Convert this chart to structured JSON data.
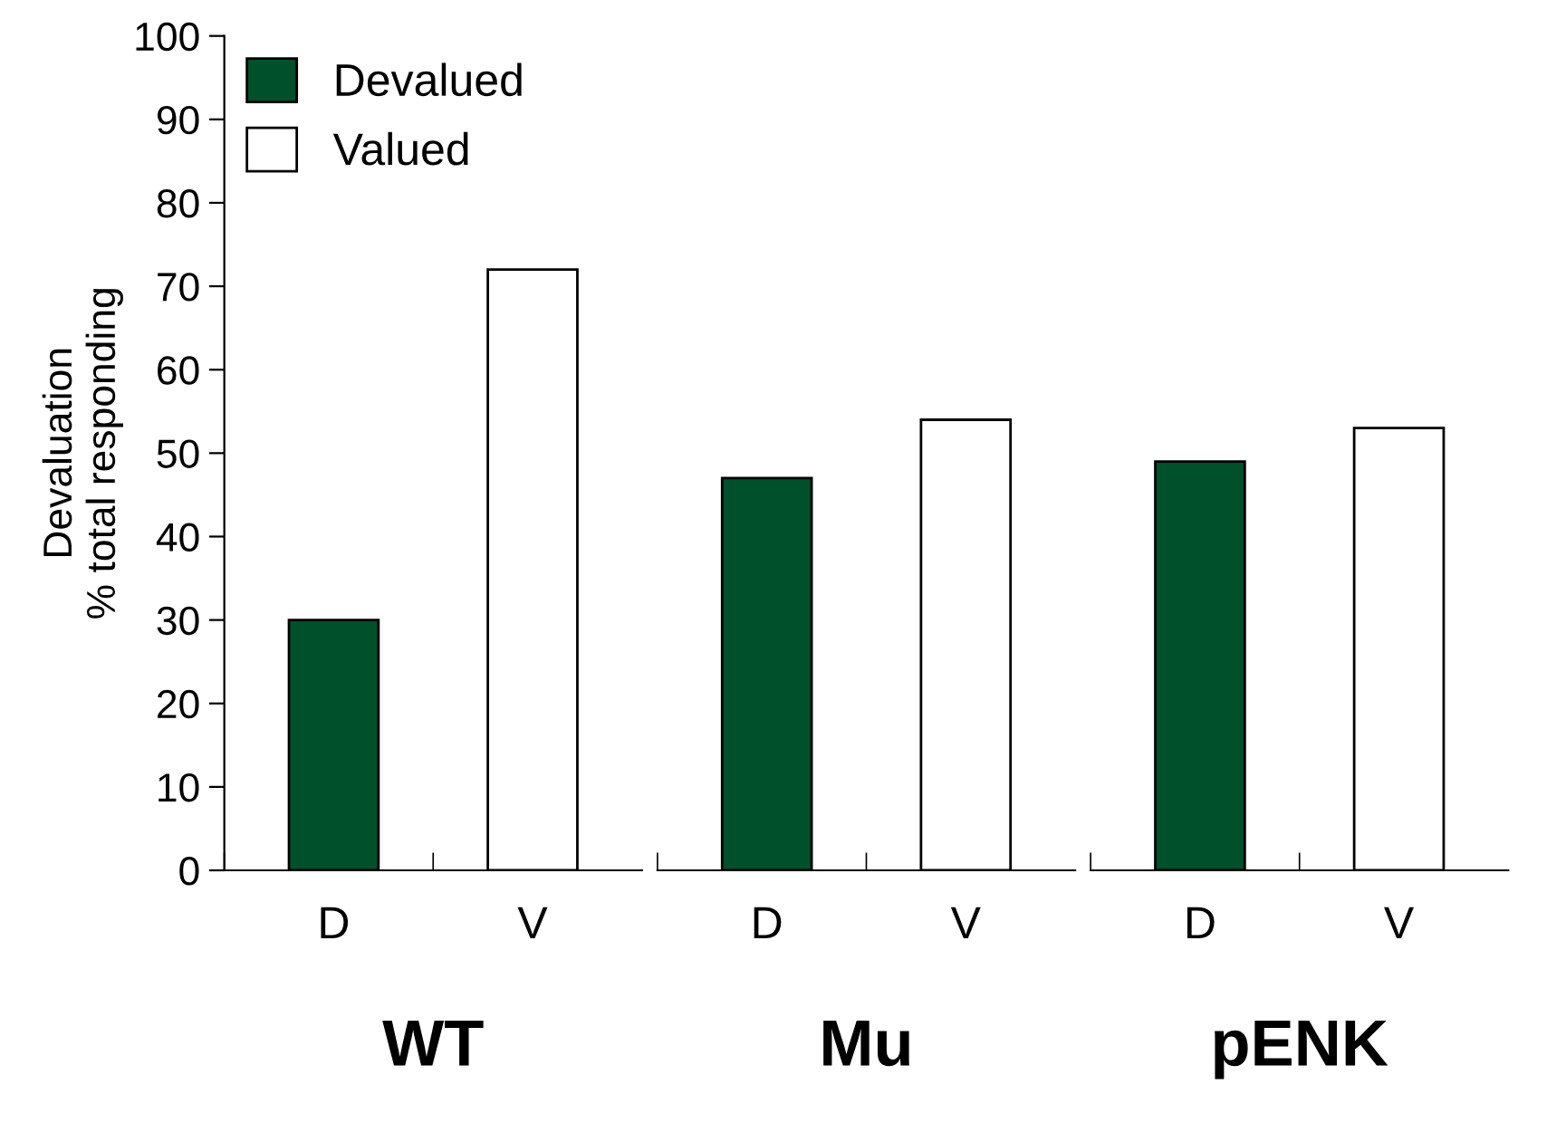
{
  "chart_data": [
    {
      "type": "bar",
      "xlabel": "WT",
      "ylabel": "Devaluation\n% total responding",
      "categories": [
        "D",
        "V"
      ],
      "series": [
        {
          "name": "Devalued",
          "color": "#00502c",
          "values": [
            30,
            null
          ]
        },
        {
          "name": "Valued",
          "color": "#ffffff",
          "values": [
            null,
            72
          ]
        }
      ],
      "ylim": [
        0,
        100
      ],
      "yticks": [
        0,
        10,
        20,
        30,
        40,
        50,
        60,
        70,
        80,
        90,
        100
      ],
      "legend": "top left",
      "grid": false
    },
    {
      "type": "bar",
      "xlabel": "Mu",
      "categories": [
        "D",
        "V"
      ],
      "series": [
        {
          "color": "#00502c",
          "values": [
            47,
            null
          ]
        },
        {
          "color": "#ffffff",
          "values": [
            null,
            54
          ]
        }
      ],
      "ylim": [
        0,
        100
      ],
      "tick_labels": "x",
      "grid": false
    },
    {
      "type": "bar",
      "xlabel": "pENK",
      "categories": [
        "D",
        "V"
      ],
      "series": [
        {
          "color": "#00502c",
          "values": [
            49,
            null
          ]
        },
        {
          "color": "#ffffff",
          "values": [
            null,
            53
          ]
        }
      ],
      "ylim": [
        0,
        100
      ],
      "tick_labels": "x",
      "grid": false
    }
  ]
}
